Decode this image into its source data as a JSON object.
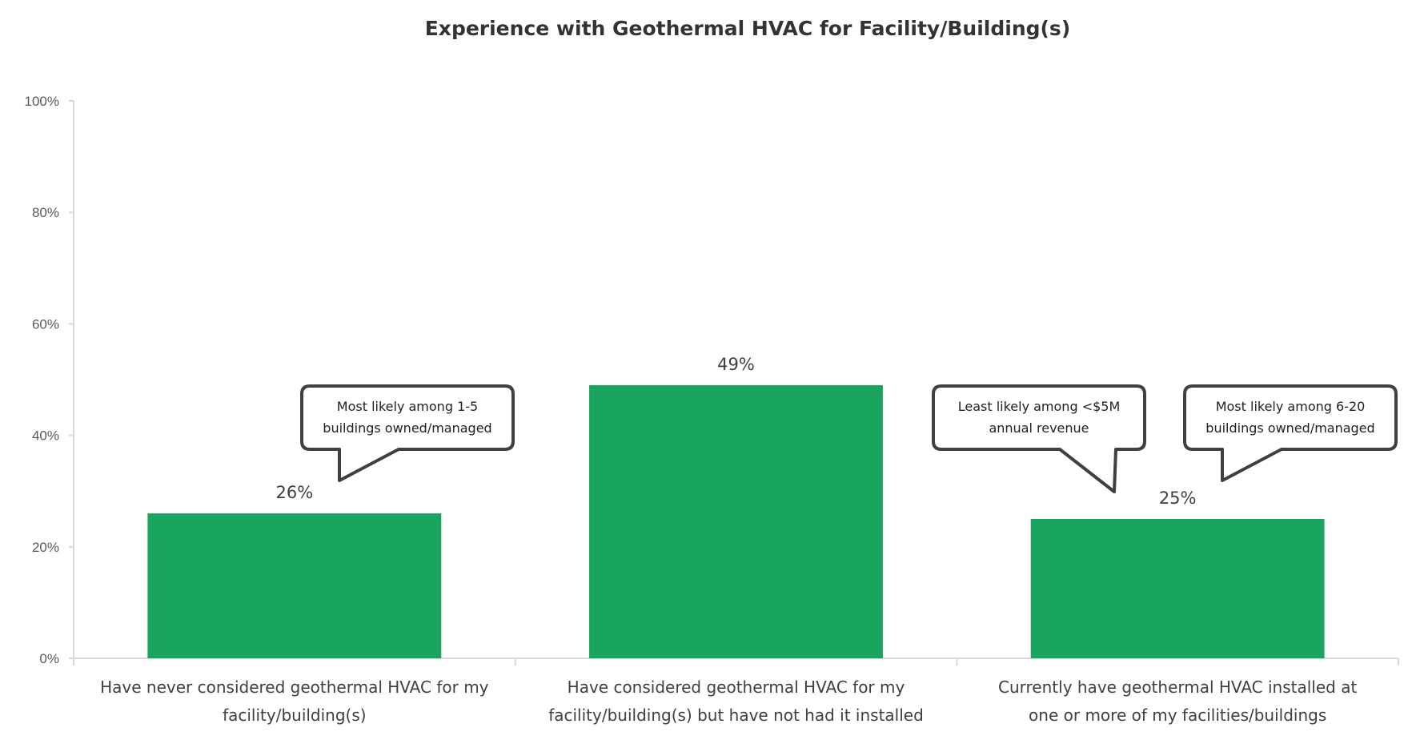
{
  "colors": {
    "bar": "#1ba45e",
    "axis": "#d9d9d9",
    "callout_stroke": "#404040"
  },
  "chart_data": {
    "type": "bar",
    "title": "Experience with Geothermal HVAC for Facility/Building(s)",
    "xlabel": "",
    "ylabel": "",
    "ylim": [
      0,
      100
    ],
    "yticks": [
      "0%",
      "20%",
      "40%",
      "60%",
      "80%",
      "100%"
    ],
    "grid": false,
    "categories": [
      [
        "Have never considered geothermal HVAC for my",
        "facility/building(s)"
      ],
      [
        "Have considered geothermal HVAC for my",
        "facility/building(s) but have not had it installed"
      ],
      [
        "Currently have geothermal HVAC installed at",
        "one or more of my facilities/buildings"
      ]
    ],
    "values": [
      26,
      49,
      25
    ],
    "data_labels": [
      "26%",
      "49%",
      "25%"
    ],
    "annotations": [
      {
        "category_index": 0,
        "lines": [
          "Most likely among 1-5",
          "buildings owned/managed"
        ]
      },
      {
        "category_index": 2,
        "lines": [
          "Least likely among <$5M",
          "annual revenue"
        ]
      },
      {
        "category_index": 2,
        "lines": [
          "Most likely among 6-20",
          "buildings owned/managed"
        ]
      }
    ]
  }
}
